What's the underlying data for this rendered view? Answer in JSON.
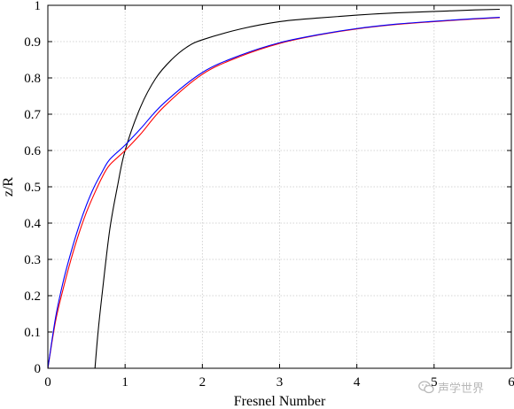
{
  "chart_data": {
    "type": "line",
    "title": "",
    "xlabel": "Fresnel Number",
    "ylabel": "z/R",
    "xlim": [
      0,
      6
    ],
    "ylim": [
      0,
      1
    ],
    "xticks": [
      0,
      1,
      2,
      3,
      4,
      5,
      6
    ],
    "yticks": [
      0,
      0.1,
      0.2,
      0.3,
      0.4,
      0.5,
      0.6,
      0.7,
      0.8,
      0.9,
      1
    ],
    "grid": true,
    "legend": "none",
    "series": [
      {
        "color": "#000000",
        "x": [
          0.61,
          0.65,
          0.7,
          0.8,
          0.9,
          1.0,
          1.2,
          1.4,
          1.6,
          1.8,
          2.0,
          2.5,
          3.0,
          3.5,
          4.0,
          4.5,
          5.0,
          5.5,
          5.85
        ],
        "y": [
          0.0,
          0.1,
          0.2,
          0.38,
          0.5,
          0.6,
          0.72,
          0.8,
          0.85,
          0.885,
          0.905,
          0.935,
          0.955,
          0.965,
          0.973,
          0.979,
          0.983,
          0.987,
          0.989
        ]
      },
      {
        "color": "#ff0000",
        "x": [
          0,
          0.1,
          0.2,
          0.3,
          0.4,
          0.5,
          0.6,
          0.7,
          0.8,
          1.0,
          1.2,
          1.5,
          2.0,
          2.5,
          3.0,
          3.5,
          4.0,
          4.5,
          5.0,
          5.5,
          5.85
        ],
        "y": [
          0.0,
          0.13,
          0.22,
          0.3,
          0.37,
          0.43,
          0.48,
          0.525,
          0.56,
          0.6,
          0.645,
          0.72,
          0.81,
          0.86,
          0.895,
          0.918,
          0.935,
          0.947,
          0.955,
          0.962,
          0.966
        ]
      },
      {
        "color": "#0000ff",
        "x": [
          0,
          0.1,
          0.2,
          0.3,
          0.4,
          0.5,
          0.6,
          0.7,
          0.8,
          1.0,
          1.2,
          1.5,
          2.0,
          2.5,
          3.0,
          3.5,
          4.0,
          4.5,
          5.0,
          5.5,
          5.85
        ],
        "y": [
          0.0,
          0.14,
          0.24,
          0.32,
          0.39,
          0.45,
          0.5,
          0.54,
          0.575,
          0.615,
          0.66,
          0.73,
          0.815,
          0.863,
          0.897,
          0.919,
          0.936,
          0.948,
          0.956,
          0.963,
          0.967
        ]
      }
    ]
  },
  "watermark": {
    "text": "声学世界",
    "icon": "wechat-icon"
  }
}
